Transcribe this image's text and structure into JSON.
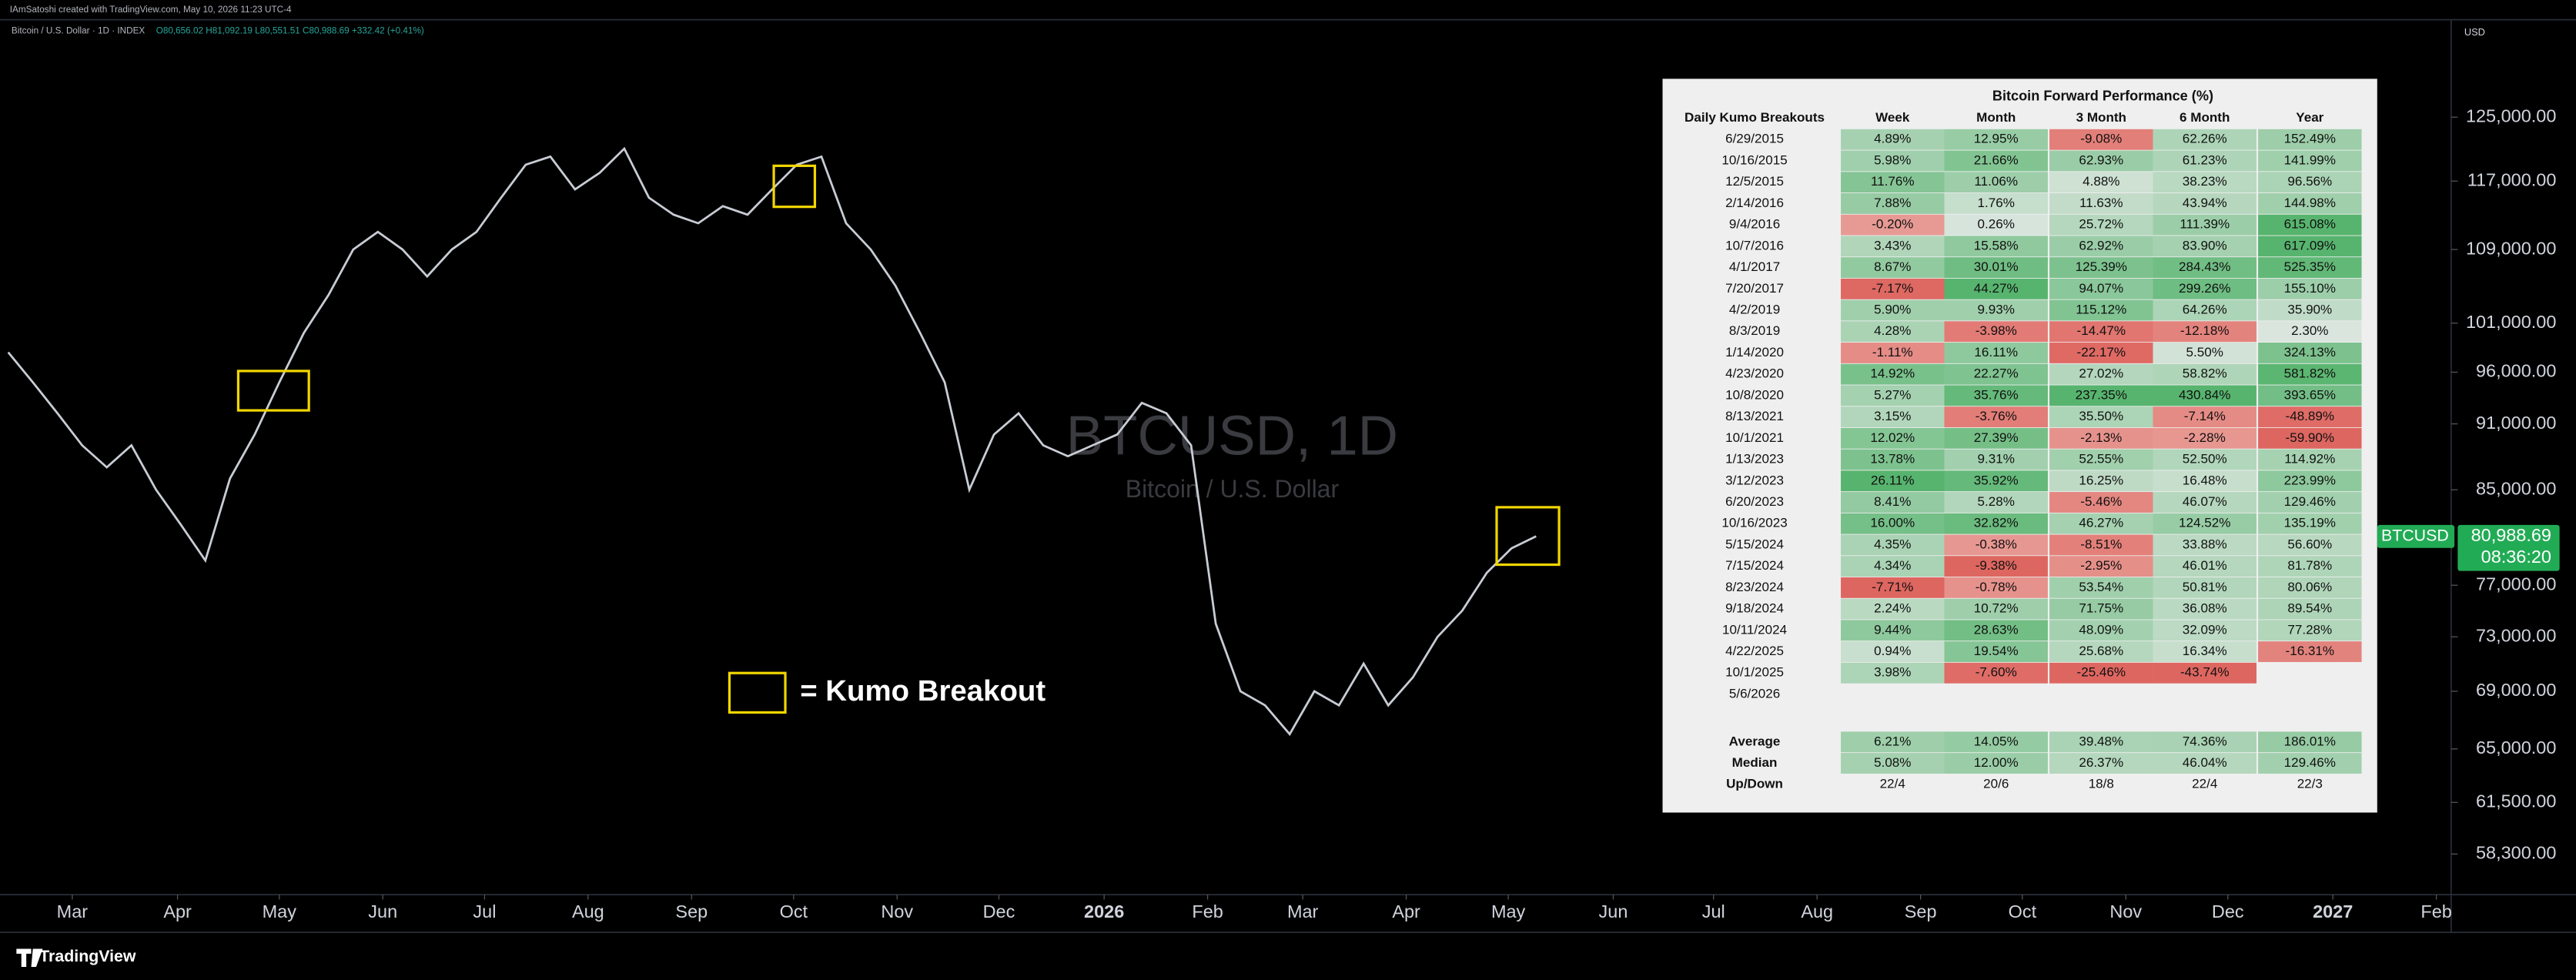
{
  "header": {
    "credit": "IAmSatoshi created with TradingView.com, May 10, 2026 11:23 UTC-4",
    "symbol": "Bitcoin / U.S. Dollar · 1D · INDEX",
    "ohlc": "O80,656.02 H81,092.19 L80,551.51 C80,988.69 +332.42 (+0.41%)",
    "currency": "USD",
    "footer": "TradingView"
  },
  "chart_data": {
    "type": "line",
    "watermark": "BTCUSD, 1D",
    "watermark_subtitle": "Bitcoin / U.S. Dollar",
    "annotation": "= Kumo Breakout",
    "log_scale": true,
    "grid": false,
    "color": "#c8ccd4",
    "categories": [
      null,
      null,
      null,
      null,
      null,
      null,
      null,
      null,
      null,
      null,
      null,
      null,
      null,
      null,
      null,
      null,
      null,
      null,
      null,
      null,
      null,
      null,
      null,
      null,
      null,
      null,
      null,
      null,
      null,
      null,
      null,
      null,
      null,
      null,
      null,
      null,
      null,
      null,
      null,
      null,
      null,
      null,
      null,
      null,
      null,
      null,
      null,
      null,
      null,
      null,
      null,
      null,
      null,
      null,
      null,
      null,
      null,
      null,
      null,
      null,
      null,
      null,
      null
    ],
    "values": [
      98000,
      95000,
      92000,
      89000,
      87000,
      89000,
      85000,
      82000,
      79000,
      86000,
      90000,
      95000,
      100000,
      104000,
      109000,
      111000,
      109000,
      106000,
      109000,
      111000,
      115000,
      119000,
      120000,
      116000,
      118000,
      121000,
      115000,
      113000,
      112000,
      114000,
      113000,
      116000,
      119000,
      120000,
      112000,
      109000,
      105000,
      100000,
      95000,
      85000,
      90000,
      92000,
      89000,
      88000,
      89000,
      90000,
      93000,
      92000,
      89000,
      74000,
      69000,
      68000,
      66000,
      69000,
      68000,
      71000,
      68000,
      70000,
      73000,
      75000,
      78000,
      80000,
      81000
    ],
    "xlim": [
      0,
      99.13
    ],
    "xticks": [
      {
        "value": 2.6,
        "label": "Mar"
      },
      {
        "value": 6.87,
        "label": "Apr"
      },
      {
        "value": 11,
        "label": "May"
      },
      {
        "value": 15.2,
        "label": "Jun"
      },
      {
        "value": 19.33,
        "label": "Jul"
      },
      {
        "value": 23.53,
        "label": "Aug"
      },
      {
        "value": 27.73,
        "label": "Sep"
      },
      {
        "value": 31.87,
        "label": "Oct"
      },
      {
        "value": 36.07,
        "label": "Nov"
      },
      {
        "value": 40.2,
        "label": "Dec"
      },
      {
        "value": 44.47,
        "label": "2026"
      },
      {
        "value": 48.67,
        "label": "Feb"
      },
      {
        "value": 52.53,
        "label": "Mar"
      },
      {
        "value": 56.73,
        "label": "Apr"
      },
      {
        "value": 60.87,
        "label": "May"
      },
      {
        "value": 65.13,
        "label": "Jun"
      },
      {
        "value": 69.2,
        "label": "Jul"
      },
      {
        "value": 73.4,
        "label": "Aug"
      },
      {
        "value": 77.6,
        "label": "Sep"
      },
      {
        "value": 81.73,
        "label": "Oct"
      },
      {
        "value": 85.93,
        "label": "Nov"
      },
      {
        "value": 90.07,
        "label": "Dec"
      },
      {
        "value": 94.33,
        "label": "2027"
      },
      {
        "value": 98.53,
        "label": "Feb"
      }
    ],
    "ylim": [
      55900,
      137800
    ],
    "yticks": [
      {
        "value": 125000,
        "label": "125,000.00"
      },
      {
        "value": 117000,
        "label": "117,000.00"
      },
      {
        "value": 109000,
        "label": "109,000.00"
      },
      {
        "value": 101000,
        "label": "101,000.00"
      },
      {
        "value": 96000,
        "label": "96,000.00"
      },
      {
        "value": 91000,
        "label": "91,000.00"
      },
      {
        "value": 85000,
        "label": "85,000.00"
      },
      {
        "value": 77000,
        "label": "77,000.00"
      },
      {
        "value": 73000,
        "label": "73,000.00"
      },
      {
        "value": 69000,
        "label": "69,000.00"
      },
      {
        "value": 65000,
        "label": "65,000.00"
      },
      {
        "value": 61500,
        "label": "61,500.00"
      },
      {
        "value": 58300,
        "label": "58,300.00"
      }
    ],
    "last_price": {
      "symbol": "BTCUSD",
      "value": 80988.69,
      "label": "80,988.69",
      "countdown": "08:36:20"
    }
  },
  "table": {
    "title": "Bitcoin Forward Performance (%)",
    "columns": [
      "Daily Kumo Breakouts",
      "Week",
      "Month",
      "3 Month",
      "6 Month",
      "Year"
    ],
    "rows": [
      [
        "6/29/2015",
        "4.89%",
        "12.95%",
        "-9.08%",
        "62.26%",
        "152.49%"
      ],
      [
        "10/16/2015",
        "5.98%",
        "21.66%",
        "62.93%",
        "61.23%",
        "141.99%"
      ],
      [
        "12/5/2015",
        "11.76%",
        "11.06%",
        "4.88%",
        "38.23%",
        "96.56%"
      ],
      [
        "2/14/2016",
        "7.88%",
        "1.76%",
        "11.63%",
        "43.94%",
        "144.98%"
      ],
      [
        "9/4/2016",
        "-0.20%",
        "0.26%",
        "25.72%",
        "111.39%",
        "615.08%"
      ],
      [
        "10/7/2016",
        "3.43%",
        "15.58%",
        "62.92%",
        "83.90%",
        "617.09%"
      ],
      [
        "4/1/2017",
        "8.67%",
        "30.01%",
        "125.39%",
        "284.43%",
        "525.35%"
      ],
      [
        "7/20/2017",
        "-7.17%",
        "44.27%",
        "94.07%",
        "299.26%",
        "155.10%"
      ],
      [
        "4/2/2019",
        "5.90%",
        "9.93%",
        "115.12%",
        "64.26%",
        "35.90%"
      ],
      [
        "8/3/2019",
        "4.28%",
        "-3.98%",
        "-14.47%",
        "-12.18%",
        "2.30%"
      ],
      [
        "1/14/2020",
        "-1.11%",
        "16.11%",
        "-22.17%",
        "5.50%",
        "324.13%"
      ],
      [
        "4/23/2020",
        "14.92%",
        "22.27%",
        "27.02%",
        "58.82%",
        "581.82%"
      ],
      [
        "10/8/2020",
        "5.27%",
        "35.76%",
        "237.35%",
        "430.84%",
        "393.65%"
      ],
      [
        "8/13/2021",
        "3.15%",
        "-3.76%",
        "35.50%",
        "-7.14%",
        "-48.89%"
      ],
      [
        "10/1/2021",
        "12.02%",
        "27.39%",
        "-2.13%",
        "-2.28%",
        "-59.90%"
      ],
      [
        "1/13/2023",
        "13.78%",
        "9.31%",
        "52.55%",
        "52.50%",
        "114.92%"
      ],
      [
        "3/12/2023",
        "26.11%",
        "35.92%",
        "16.25%",
        "16.48%",
        "223.99%"
      ],
      [
        "6/20/2023",
        "8.41%",
        "5.28%",
        "-5.46%",
        "46.07%",
        "129.46%"
      ],
      [
        "10/16/2023",
        "16.00%",
        "32.82%",
        "46.27%",
        "124.52%",
        "135.19%"
      ],
      [
        "5/15/2024",
        "4.35%",
        "-0.38%",
        "-8.51%",
        "33.88%",
        "56.60%"
      ],
      [
        "7/15/2024",
        "4.34%",
        "-9.38%",
        "-2.95%",
        "46.01%",
        "81.78%"
      ],
      [
        "8/23/2024",
        "-7.71%",
        "-0.78%",
        "53.54%",
        "50.81%",
        "80.06%"
      ],
      [
        "9/18/2024",
        "2.24%",
        "10.72%",
        "71.75%",
        "36.08%",
        "89.54%"
      ],
      [
        "10/11/2024",
        "9.44%",
        "28.63%",
        "48.09%",
        "32.09%",
        "77.28%"
      ],
      [
        "4/22/2025",
        "0.94%",
        "19.54%",
        "25.68%",
        "16.34%",
        "-16.31%"
      ],
      [
        "10/1/2025",
        "3.98%",
        "-7.60%",
        "-25.46%",
        "-43.74%"
      ],
      [
        "5/6/2026"
      ]
    ],
    "summary": [
      [
        "Average",
        "6.21%",
        "14.05%",
        "39.48%",
        "74.36%",
        "186.01%"
      ],
      [
        "Median",
        "5.08%",
        "12.00%",
        "26.37%",
        "46.04%",
        "129.46%"
      ],
      [
        "Up/Down",
        "22/4",
        "20/6",
        "18/8",
        "22/4",
        "22/3"
      ]
    ]
  }
}
